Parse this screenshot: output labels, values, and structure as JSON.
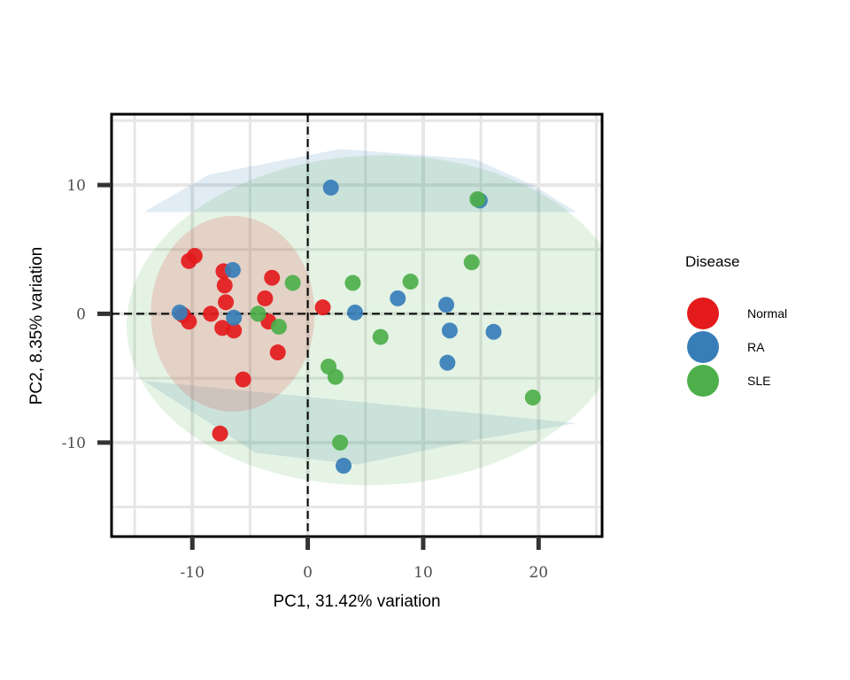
{
  "chart_data": {
    "type": "scatter",
    "title": "",
    "xlabel": "PC1, 31.42% variation",
    "ylabel": "PC2, 8.35% variation",
    "xlim": [
      -17,
      25.5
    ],
    "ylim": [
      -17.3,
      15.5
    ],
    "x_ticks": [
      -10,
      0,
      10,
      20
    ],
    "x_tick_labels": [
      "-10",
      "0",
      "10",
      "20"
    ],
    "y_ticks": [
      -10,
      0,
      10
    ],
    "y_tick_labels": [
      "-10",
      "0",
      "10"
    ],
    "grid": true,
    "reference_lines": {
      "x": 0,
      "y": 0,
      "style": "dashed"
    },
    "legend": {
      "title": "Disease",
      "position": "right"
    },
    "series": [
      {
        "name": "Normal",
        "color": "#e41a1c",
        "points": [
          [
            -10.3,
            4.1
          ],
          [
            -9.8,
            4.5
          ],
          [
            -7.3,
            3.3
          ],
          [
            -7.2,
            2.2
          ],
          [
            -7.1,
            0.9
          ],
          [
            -8.4,
            0.0
          ],
          [
            -10.8,
            -0.1
          ],
          [
            -10.3,
            -0.6
          ],
          [
            -7.4,
            -1.1
          ],
          [
            -6.4,
            -1.3
          ],
          [
            -3.7,
            1.2
          ],
          [
            -3.1,
            2.8
          ],
          [
            -3.4,
            -0.6
          ],
          [
            -2.6,
            -3.0
          ],
          [
            1.3,
            0.5
          ],
          [
            -5.6,
            -5.1
          ],
          [
            -7.6,
            -9.3
          ]
        ]
      },
      {
        "name": "RA",
        "color": "#377eb8",
        "points": [
          [
            2.0,
            9.8
          ],
          [
            14.9,
            8.8
          ],
          [
            -6.5,
            3.4
          ],
          [
            -11.1,
            0.1
          ],
          [
            -6.4,
            -0.3
          ],
          [
            4.1,
            0.1
          ],
          [
            7.8,
            1.2
          ],
          [
            12.0,
            0.7
          ],
          [
            12.3,
            -1.3
          ],
          [
            16.1,
            -1.4
          ],
          [
            12.1,
            -3.8
          ],
          [
            3.1,
            -11.8
          ]
        ]
      },
      {
        "name": "SLE",
        "color": "#4daf4a",
        "points": [
          [
            14.7,
            8.9
          ],
          [
            14.2,
            4.0
          ],
          [
            3.9,
            2.4
          ],
          [
            8.9,
            2.5
          ],
          [
            -1.3,
            2.4
          ],
          [
            -4.3,
            0.0
          ],
          [
            -2.5,
            -1.0
          ],
          [
            6.3,
            -1.8
          ],
          [
            1.8,
            -4.1
          ],
          [
            2.4,
            -4.9
          ],
          [
            19.5,
            -6.5
          ],
          [
            2.8,
            -10.0
          ]
        ]
      }
    ],
    "ellipses": [
      {
        "group": "RA",
        "color": "#377eb8",
        "opacity": 0.15,
        "outline": [
          [
            -14.2,
            7.9
          ],
          [
            -8.6,
            10.8
          ],
          [
            2.8,
            12.8
          ],
          [
            14.5,
            12.0
          ],
          [
            19.5,
            10.0
          ],
          [
            23.3,
            7.9
          ],
          [
            -14.2,
            7.9
          ]
        ]
      },
      {
        "group": "RA",
        "color": "#377eb8",
        "opacity": 0.15,
        "outline": [
          [
            -14.2,
            -5.2
          ],
          [
            -4.5,
            -10.8
          ],
          [
            4.3,
            -11.7
          ],
          [
            14.5,
            -9.8
          ],
          [
            23.3,
            -8.5
          ],
          [
            -14.2,
            -5.2
          ]
        ]
      },
      {
        "group": "SLE",
        "color": "#4daf4a",
        "opacity": 0.15,
        "cx": 5.9,
        "cy": -0.5,
        "rx": 21.6,
        "ry": 12.8,
        "rotation": -2
      },
      {
        "group": "Normal",
        "color": "#e41a1c",
        "opacity": 0.15,
        "cx": -6.5,
        "cy": 0.0,
        "rx": 7.1,
        "ry": 7.6,
        "rotation": 0
      }
    ]
  }
}
